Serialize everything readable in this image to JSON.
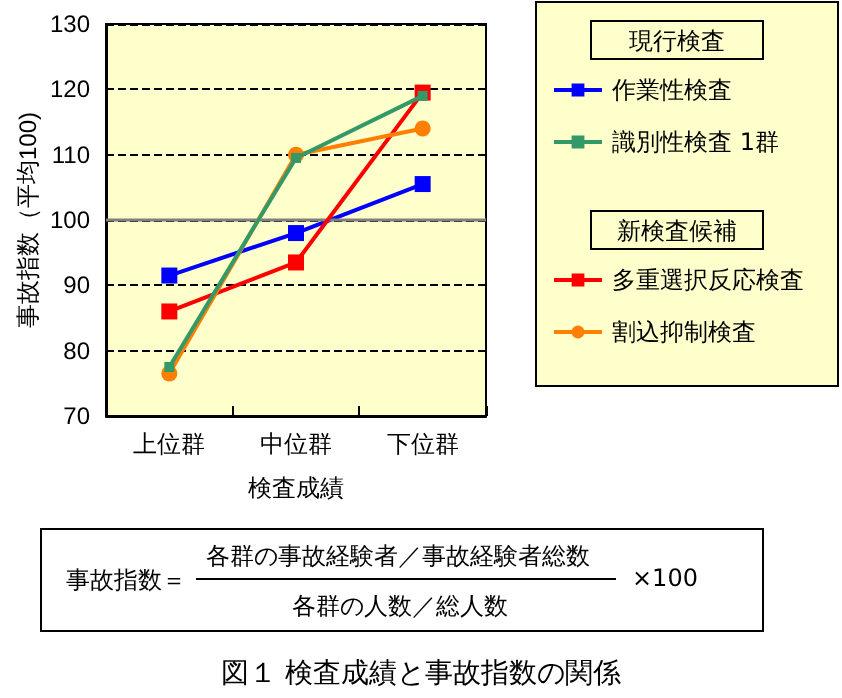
{
  "chart_data": {
    "type": "line",
    "title": "図１ 検査成績と事故指数の関係",
    "xlabel": "検査成績",
    "ylabel": "事故指数（平均100)",
    "categories": [
      "上位群",
      "中位群",
      "下位群"
    ],
    "series": [
      {
        "name": "作業性検査",
        "color": "#0000ff",
        "values": [
          91.5,
          98,
          105.5
        ]
      },
      {
        "name": "識別性検査 1群",
        "color": "#339966",
        "values": [
          77.5,
          109.5,
          119
        ],
        "marker": "square"
      },
      {
        "name": "多重選択反応検査",
        "color": "#ff0000",
        "values": [
          86,
          93.5,
          119.5
        ]
      },
      {
        "name": "割込抑制検査",
        "color": "#ff7f00",
        "values": [
          76.5,
          110,
          114
        ],
        "marker": "circle"
      }
    ],
    "ylim": [
      70,
      130
    ],
    "yticks": [
      70,
      80,
      90,
      100,
      110,
      120,
      130
    ],
    "grid": "y",
    "legend": "right",
    "marker": "square",
    "line_style": "solid",
    "ref_lines": [
      {
        "axis": "y",
        "value": 100,
        "label": null,
        "color": "#808080"
      }
    ],
    "annotations": [
      "現行検査",
      "新検査候補",
      "事故指数＝",
      "各群の事故経験者／事故経験者総数",
      "各群の人数／総人数",
      "×100"
    ]
  }
}
